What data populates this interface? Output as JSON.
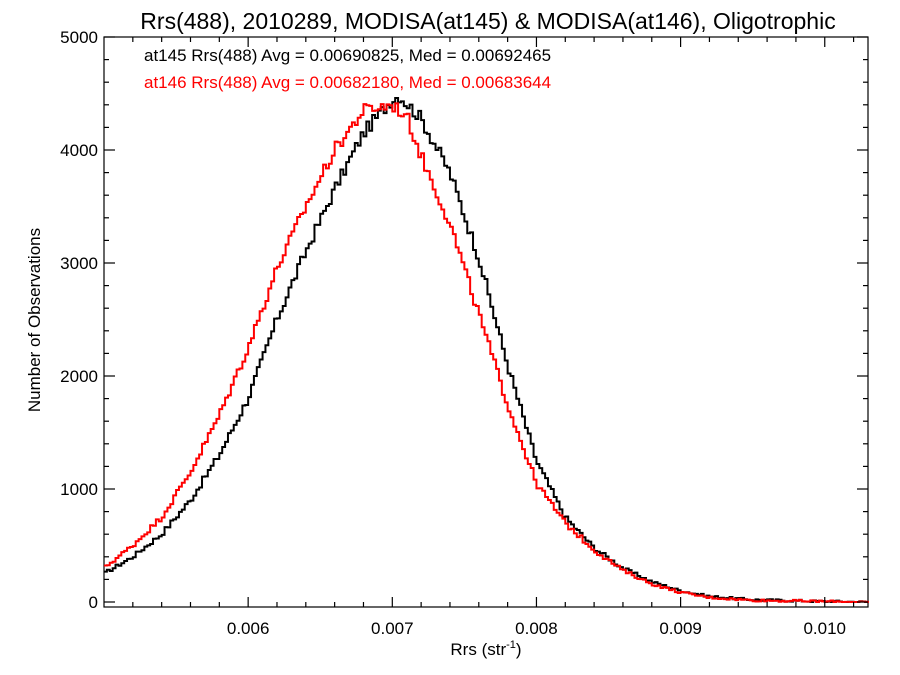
{
  "chart_data": {
    "type": "line",
    "title": "Rrs(488), 2010289, MODISA(at145) & MODISA(at146), Oligotrophic",
    "xlabel": "Rrs (str",
    "xlabel_superscript": "-1",
    "xlabel_suffix": ")",
    "ylabel": "Number of Observations",
    "xlim": [
      0.005,
      0.0103
    ],
    "ylim": [
      0,
      5000
    ],
    "grid": false,
    "x_ticks": [
      {
        "value": 0.006,
        "label": "0.006"
      },
      {
        "value": 0.007,
        "label": "0.007"
      },
      {
        "value": 0.008,
        "label": "0.008"
      },
      {
        "value": 0.009,
        "label": "0.009"
      },
      {
        "value": 0.01,
        "label": "0.010"
      }
    ],
    "y_ticks": [
      {
        "value": 0,
        "label": "0"
      },
      {
        "value": 1000,
        "label": "1000"
      },
      {
        "value": 2000,
        "label": "2000"
      },
      {
        "value": 3000,
        "label": "3000"
      },
      {
        "value": 4000,
        "label": "4000"
      },
      {
        "value": 5000,
        "label": "5000"
      }
    ],
    "annotations": [
      {
        "text": "at145 Rrs(488) Avg = 0.00690825, Med = 0.00692465",
        "color": "#000000"
      },
      {
        "text": "at146 Rrs(488) Avg = 0.00682180, Med = 0.00683644",
        "color": "#ff0000"
      }
    ],
    "series": [
      {
        "color": "#000000",
        "points": [
          [
            0.005,
            250
          ],
          [
            0.0052,
            400
          ],
          [
            0.0054,
            600
          ],
          [
            0.0056,
            900
          ],
          [
            0.0058,
            1300
          ],
          [
            0.006,
            1800
          ],
          [
            0.0062,
            2500
          ],
          [
            0.0064,
            3100
          ],
          [
            0.0066,
            3650
          ],
          [
            0.0068,
            4150
          ],
          [
            0.007,
            4450
          ],
          [
            0.00705,
            4480
          ],
          [
            0.0072,
            4280
          ],
          [
            0.0074,
            3800
          ],
          [
            0.0076,
            3050
          ],
          [
            0.0078,
            2100
          ],
          [
            0.008,
            1250
          ],
          [
            0.0082,
            750
          ],
          [
            0.0084,
            480
          ],
          [
            0.0086,
            300
          ],
          [
            0.0088,
            180
          ],
          [
            0.009,
            100
          ],
          [
            0.0092,
            50
          ],
          [
            0.0095,
            20
          ],
          [
            0.01,
            5
          ],
          [
            0.0103,
            0
          ]
        ]
      },
      {
        "color": "#ff0000",
        "points": [
          [
            0.005,
            300
          ],
          [
            0.0052,
            500
          ],
          [
            0.0054,
            750
          ],
          [
            0.0056,
            1150
          ],
          [
            0.0058,
            1650
          ],
          [
            0.006,
            2250
          ],
          [
            0.0062,
            2950
          ],
          [
            0.0064,
            3500
          ],
          [
            0.0066,
            4000
          ],
          [
            0.0068,
            4350
          ],
          [
            0.007,
            4400
          ],
          [
            0.0071,
            4300
          ],
          [
            0.0072,
            3950
          ],
          [
            0.0074,
            3350
          ],
          [
            0.0076,
            2550
          ],
          [
            0.0078,
            1750
          ],
          [
            0.008,
            1050
          ],
          [
            0.0082,
            700
          ],
          [
            0.0084,
            460
          ],
          [
            0.0086,
            280
          ],
          [
            0.0088,
            160
          ],
          [
            0.009,
            85
          ],
          [
            0.0092,
            40
          ],
          [
            0.0095,
            15
          ],
          [
            0.01,
            5
          ],
          [
            0.0103,
            0
          ]
        ]
      }
    ]
  }
}
